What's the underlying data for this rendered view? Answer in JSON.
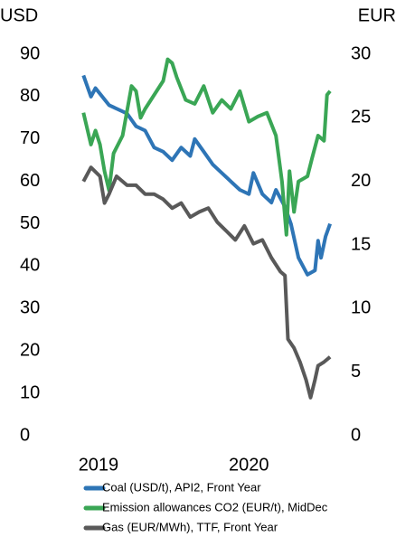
{
  "chart_data": {
    "type": "line",
    "y_label": "USD",
    "y2_label": "EUR",
    "xlim": [
      2018.85,
      2020.75
    ],
    "xticks": [
      2019,
      2020
    ],
    "ylim": [
      0,
      90
    ],
    "yticks": [
      0,
      10,
      20,
      30,
      40,
      50,
      60,
      70,
      80,
      90
    ],
    "y2lim": [
      0,
      30
    ],
    "y2ticks": [
      0,
      5,
      10,
      15,
      20,
      25,
      30
    ],
    "legend": "bottom",
    "series": [
      {
        "name": "Coal (USD/t), API2, Front Year",
        "color": "#2e75b6",
        "axis": "y",
        "x": [
          2018.9,
          2018.95,
          2018.98,
          2019.07,
          2019.19,
          2019.25,
          2019.31,
          2019.37,
          2019.43,
          2019.49,
          2019.55,
          2019.61,
          2019.64,
          2019.7,
          2019.76,
          2019.82,
          2019.88,
          2019.94,
          2020.0,
          2020.03,
          2020.09,
          2020.15,
          2020.18,
          2020.24,
          2020.28,
          2020.33,
          2020.39,
          2020.44,
          2020.46,
          2020.48,
          2020.51,
          2020.54
        ],
        "values": [
          85,
          80,
          82,
          78,
          76,
          73,
          72,
          68,
          67,
          65,
          68,
          66,
          70,
          67,
          64,
          62,
          60,
          58,
          57,
          62,
          57,
          55,
          58,
          54,
          50,
          42,
          38,
          39,
          46,
          42,
          47,
          50
        ]
      },
      {
        "name": "Emission allowances CO2 (EUR/t), MidDec",
        "color": "#3aa655",
        "axis": "y2",
        "x": [
          2018.9,
          2018.95,
          2018.98,
          2019.01,
          2019.04,
          2019.07,
          2019.1,
          2019.16,
          2019.22,
          2019.25,
          2019.28,
          2019.31,
          2019.37,
          2019.43,
          2019.46,
          2019.49,
          2019.52,
          2019.58,
          2019.64,
          2019.7,
          2019.76,
          2019.82,
          2019.88,
          2019.94,
          2020.0,
          2020.06,
          2020.12,
          2020.18,
          2020.22,
          2020.25,
          2020.27,
          2020.3,
          2020.33,
          2020.39,
          2020.42,
          2020.46,
          2020.5,
          2020.52,
          2020.54
        ],
        "values": [
          25.4,
          22.9,
          24,
          22.9,
          20.8,
          19.3,
          22.2,
          23.6,
          27.5,
          27.1,
          25,
          25.7,
          26.8,
          27.9,
          29.6,
          29.3,
          28.2,
          26.4,
          26.1,
          27.5,
          25.4,
          26.4,
          25.7,
          27.1,
          24.7,
          25.1,
          25.4,
          23.6,
          20,
          15.8,
          20.8,
          17.6,
          20,
          20.4,
          21.8,
          23.6,
          23.2,
          26.8,
          27.1
        ]
      },
      {
        "name": "Gas (EUR/MWh), TTF, Front Year",
        "color": "#595959",
        "axis": "y2",
        "x": [
          2018.9,
          2018.95,
          2019.01,
          2019.04,
          2019.07,
          2019.12,
          2019.19,
          2019.25,
          2019.31,
          2019.37,
          2019.43,
          2019.49,
          2019.55,
          2019.61,
          2019.67,
          2019.73,
          2019.79,
          2019.85,
          2019.91,
          2019.97,
          2020.03,
          2020.09,
          2020.15,
          2020.21,
          2020.24,
          2020.26,
          2020.3,
          2020.34,
          2020.38,
          2020.41,
          2020.44,
          2020.46,
          2020.5,
          2020.54
        ],
        "values": [
          20,
          21.1,
          20.4,
          18.3,
          19,
          20.4,
          19.7,
          19.7,
          19,
          19,
          18.6,
          17.9,
          18.3,
          17.2,
          17.6,
          17.9,
          16.8,
          16.1,
          15.4,
          16.5,
          15.1,
          15.4,
          14,
          12.9,
          12.6,
          7.6,
          6.9,
          5.8,
          4.4,
          3,
          4.4,
          5.5,
          5.8,
          6.2
        ]
      }
    ]
  }
}
